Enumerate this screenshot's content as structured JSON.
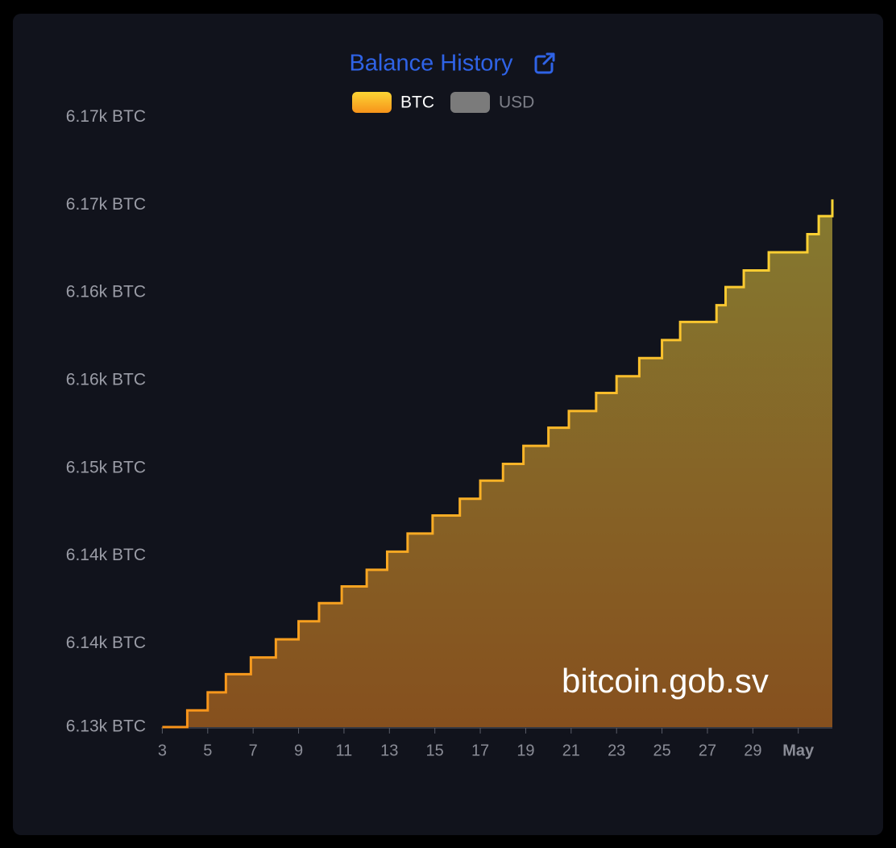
{
  "chart_data": {
    "type": "step-area",
    "title": "Balance History",
    "watermark": "bitcoin.gob.sv",
    "x": [
      3,
      4.1,
      5.0,
      5.8,
      6.9,
      8.0,
      9.0,
      9.9,
      10.9,
      12.0,
      12.9,
      13.8,
      14.9,
      16.1,
      17.0,
      18.0,
      18.9,
      20.0,
      20.9,
      22.1,
      23.0,
      24.0,
      25.0,
      25.8,
      27.4,
      27.8,
      28.6,
      29.7,
      31.4,
      31.9,
      32.5
    ],
    "series": [
      {
        "name": "BTC",
        "color": "#f7a325",
        "values": [
          6131,
          6132.2,
          6133.5,
          6134.8,
          6136.0,
          6137.3,
          6138.6,
          6139.9,
          6141.1,
          6142.3,
          6143.6,
          6144.9,
          6146.2,
          6147.4,
          6148.7,
          6149.9,
          6151.2,
          6152.5,
          6153.7,
          6155.0,
          6156.2,
          6157.5,
          6158.8,
          6160.1,
          6161.3,
          6162.6,
          6163.8,
          6165.1,
          6166.4,
          6167.7,
          6168.9
        ]
      },
      {
        "name": "USD",
        "color": "#7b7b7b",
        "hidden": true
      }
    ],
    "xlim": [
      2.95,
      32.5
    ],
    "xticks": [
      3,
      5,
      7,
      9,
      11,
      13,
      15,
      17,
      19,
      21,
      23,
      25,
      27,
      29,
      {
        "value": 31,
        "label": "May"
      }
    ],
    "ylim": [
      6131,
      6175
    ],
    "yticks": [
      {
        "value": 6131,
        "label": "6.13k BTC"
      },
      {
        "value": 6137,
        "label": "6.14k BTC"
      },
      {
        "value": 6143.3,
        "label": "6.14k BTC"
      },
      {
        "value": 6149.6,
        "label": "6.15k BTC"
      },
      {
        "value": 6155.9,
        "label": "6.16k BTC"
      },
      {
        "value": 6162.2,
        "label": "6.16k BTC"
      },
      {
        "value": 6168.5,
        "label": "6.17k BTC"
      },
      {
        "value": 6174.8,
        "label": "6.17k BTC"
      }
    ],
    "grid": false
  }
}
